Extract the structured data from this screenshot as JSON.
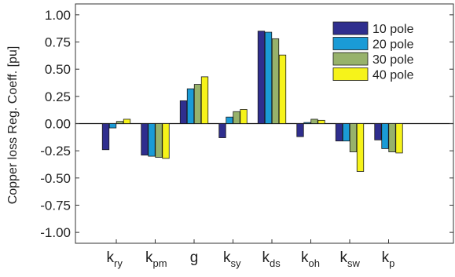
{
  "chart_data": {
    "type": "bar",
    "ylabel": "Copper loss Reg. Coeff. [pu]",
    "xlabel": "",
    "ylim": [
      -1.1,
      1.1
    ],
    "yticks": [
      1.0,
      0.75,
      0.5,
      0.25,
      0.0,
      -0.25,
      -0.5,
      -0.75,
      -1.0
    ],
    "ytick_labels": [
      "1.00",
      "0.75",
      "0.50",
      "0.25",
      "0.00",
      "-0.25",
      "-0.50",
      "-0.75",
      "-1.00"
    ],
    "categories": [
      {
        "main": "k",
        "sub": "ry"
      },
      {
        "main": "k",
        "sub": "pm"
      },
      {
        "main": "g",
        "sub": ""
      },
      {
        "main": "k",
        "sub": "sy"
      },
      {
        "main": "k",
        "sub": "ds"
      },
      {
        "main": "k",
        "sub": "oh"
      },
      {
        "main": "k",
        "sub": "sw"
      },
      {
        "main": "k",
        "sub": "p"
      }
    ],
    "legend_position": "top-right",
    "grid": false,
    "series": [
      {
        "name": "10 pole",
        "color": "#2f2e8e",
        "values": [
          -0.24,
          -0.29,
          0.21,
          -0.13,
          0.85,
          -0.12,
          -0.16,
          -0.15
        ]
      },
      {
        "name": "20 pole",
        "color": "#1a9bd6",
        "values": [
          -0.04,
          -0.3,
          0.32,
          0.06,
          0.84,
          0.01,
          -0.16,
          -0.23
        ]
      },
      {
        "name": "30 pole",
        "color": "#97b26b",
        "values": [
          0.02,
          -0.31,
          0.36,
          0.11,
          0.78,
          0.04,
          -0.26,
          -0.26
        ]
      },
      {
        "name": "40 pole",
        "color": "#f6f31a",
        "values": [
          0.04,
          -0.32,
          0.43,
          0.13,
          0.63,
          0.03,
          -0.44,
          -0.27
        ]
      }
    ]
  }
}
